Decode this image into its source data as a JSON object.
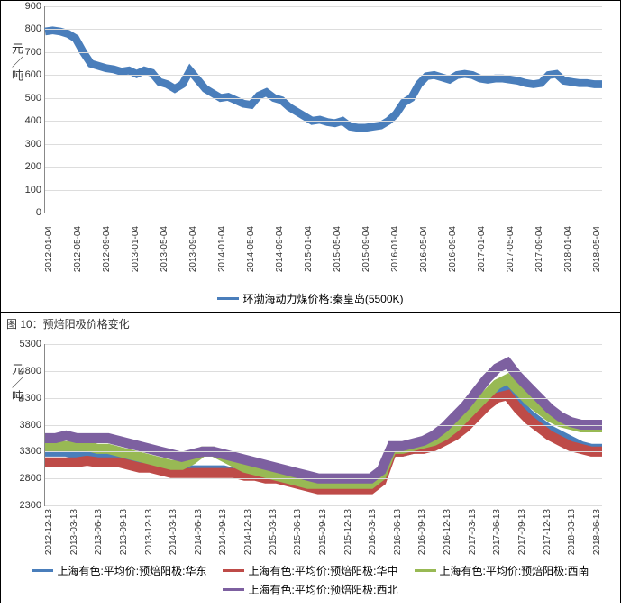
{
  "chart1": {
    "type": "line",
    "y_title": "元／吨",
    "ylim": [
      0,
      900
    ],
    "ytick_step": 100,
    "yticks": [
      0,
      100,
      200,
      300,
      400,
      500,
      600,
      700,
      800,
      900
    ],
    "grid_color": "#dddddd",
    "axis_color": "#888888",
    "background": "#ffffff",
    "x_labels": [
      "2012-01-04",
      "2012-05-04",
      "2012-09-04",
      "2013-01-04",
      "2013-05-04",
      "2013-09-04",
      "2014-01-04",
      "2014-05-04",
      "2014-09-04",
      "2015-01-04",
      "2015-05-04",
      "2015-09-04",
      "2016-01-04",
      "2016-05-04",
      "2016-09-04",
      "2017-01-04",
      "2017-05-04",
      "2017-09-04",
      "2018-01-04",
      "2018-05-04"
    ],
    "series": [
      {
        "name": "环渤海动力煤价格:秦皇岛(5500K)",
        "color": "#4a7ebb",
        "width": 2,
        "values": [
          790,
          795,
          790,
          780,
          760,
          700,
          650,
          640,
          630,
          625,
          615,
          620,
          605,
          620,
          610,
          570,
          560,
          540,
          560,
          620,
          580,
          540,
          520,
          500,
          505,
          490,
          475,
          470,
          510,
          525,
          500,
          490,
          460,
          440,
          420,
          400,
          405,
          395,
          390,
          400,
          375,
          370,
          370,
          375,
          380,
          400,
          430,
          480,
          500,
          560,
          595,
          600,
          590,
          580,
          600,
          605,
          600,
          585,
          580,
          585,
          585,
          580,
          575,
          565,
          560,
          565,
          600,
          605,
          575,
          570,
          565,
          565,
          560,
          560
        ]
      }
    ],
    "legend": [
      {
        "label": "环渤海动力煤价格:秦皇岛(5500K)",
        "color": "#4a7ebb"
      }
    ]
  },
  "caption2": "图 10：预焙阳极价格变化",
  "chart2": {
    "type": "line",
    "y_title": "元／吨",
    "ylim": [
      2300,
      5300
    ],
    "ytick_step": 500,
    "yticks": [
      2300,
      2800,
      3300,
      3800,
      4300,
      4800,
      5300
    ],
    "grid_color": "#dddddd",
    "axis_color": "#888888",
    "background": "#ffffff",
    "x_labels": [
      "2012-12-13",
      "2013-03-13",
      "2013-06-13",
      "2013-09-13",
      "2013-12-13",
      "2014-03-13",
      "2014-06-13",
      "2014-09-13",
      "2014-12-13",
      "2015-03-13",
      "2015-06-13",
      "2015-09-13",
      "2015-12-13",
      "2016-03-13",
      "2016-06-13",
      "2016-09-13",
      "2016-12-13",
      "2017-03-13",
      "2017-06-13",
      "2017-09-13",
      "2017-12-13",
      "2018-03-13",
      "2018-06-13"
    ],
    "series": [
      {
        "name": "上海有色:平均价:预焙阳极:华东",
        "color": "#4a7ebb",
        "width": 2,
        "values": [
          3300,
          3300,
          3300,
          3250,
          3250,
          3250,
          3250,
          3200,
          3200,
          3150,
          3100,
          3050,
          3000,
          2950,
          2950,
          2950,
          2950,
          2950,
          2900,
          2900,
          2900,
          2850,
          2850,
          2800,
          2750,
          2700,
          2650,
          2650,
          2650,
          2650,
          2650,
          2650,
          2800,
          3300,
          3300,
          3350,
          3400,
          3450,
          3550,
          3650,
          3800,
          4000,
          4200,
          4400,
          4550,
          4200,
          4000,
          3850,
          3700,
          3600,
          3500,
          3400,
          3350,
          3350
        ]
      },
      {
        "name": "上海有色:平均价:预焙阳极:华中",
        "color": "#be4b48",
        "width": 2,
        "values": [
          3100,
          3100,
          3100,
          3100,
          3130,
          3100,
          3100,
          3100,
          3050,
          3000,
          3000,
          2950,
          2900,
          2900,
          2900,
          2900,
          2900,
          2900,
          2900,
          2850,
          2850,
          2800,
          2800,
          2750,
          2700,
          2650,
          2600,
          2600,
          2600,
          2600,
          2600,
          2600,
          2750,
          3300,
          3300,
          3350,
          3350,
          3400,
          3500,
          3600,
          3750,
          3950,
          4150,
          4300,
          4350,
          4100,
          3900,
          3750,
          3600,
          3500,
          3400,
          3350,
          3300,
          3300
        ]
      },
      {
        "name": "上海有色:平均价:预焙阳极:西南",
        "color": "#98b954",
        "width": 2,
        "values": [
          3400,
          3400,
          3400,
          3400,
          3400,
          3350,
          3350,
          3300,
          3250,
          3200,
          3150,
          3100,
          3050,
          3050,
          3150,
          3300,
          3300,
          3200,
          3100,
          3000,
          2950,
          2900,
          2850,
          2800,
          2750,
          2700,
          2700,
          2700,
          2700,
          2700,
          2700,
          2700,
          2850,
          3350,
          3350,
          3400,
          3450,
          3500,
          3600,
          3750,
          3950,
          4150,
          4350,
          4550,
          4650,
          4450,
          4250,
          4100,
          3950,
          3850,
          3800,
          3750,
          3750,
          3750
        ]
      },
      {
        "name": "上海有色:平均价:预焙阳极:西北",
        "color": "#7d60a0",
        "width": 2,
        "values": [
          3550,
          3550,
          3600,
          3550,
          3550,
          3550,
          3550,
          3500,
          3450,
          3400,
          3350,
          3300,
          3250,
          3200,
          3250,
          3300,
          3300,
          3250,
          3200,
          3150,
          3100,
          3050,
          3000,
          2950,
          2900,
          2850,
          2800,
          2800,
          2800,
          2800,
          2800,
          2800,
          2950,
          3400,
          3400,
          3450,
          3500,
          3600,
          3750,
          3950,
          4150,
          4400,
          4650,
          4850,
          4950,
          4700,
          4500,
          4300,
          4100,
          3950,
          3850,
          3800,
          3800,
          3800
        ]
      }
    ],
    "legend": [
      {
        "label": "上海有色:平均价:预焙阳极:华东",
        "color": "#4a7ebb"
      },
      {
        "label": "上海有色:平均价:预焙阳极:华中",
        "color": "#be4b48"
      },
      {
        "label": "上海有色:平均价:预焙阳极:西南",
        "color": "#98b954"
      },
      {
        "label": "上海有色:平均价:预焙阳极:西北",
        "color": "#7d60a0"
      }
    ]
  }
}
